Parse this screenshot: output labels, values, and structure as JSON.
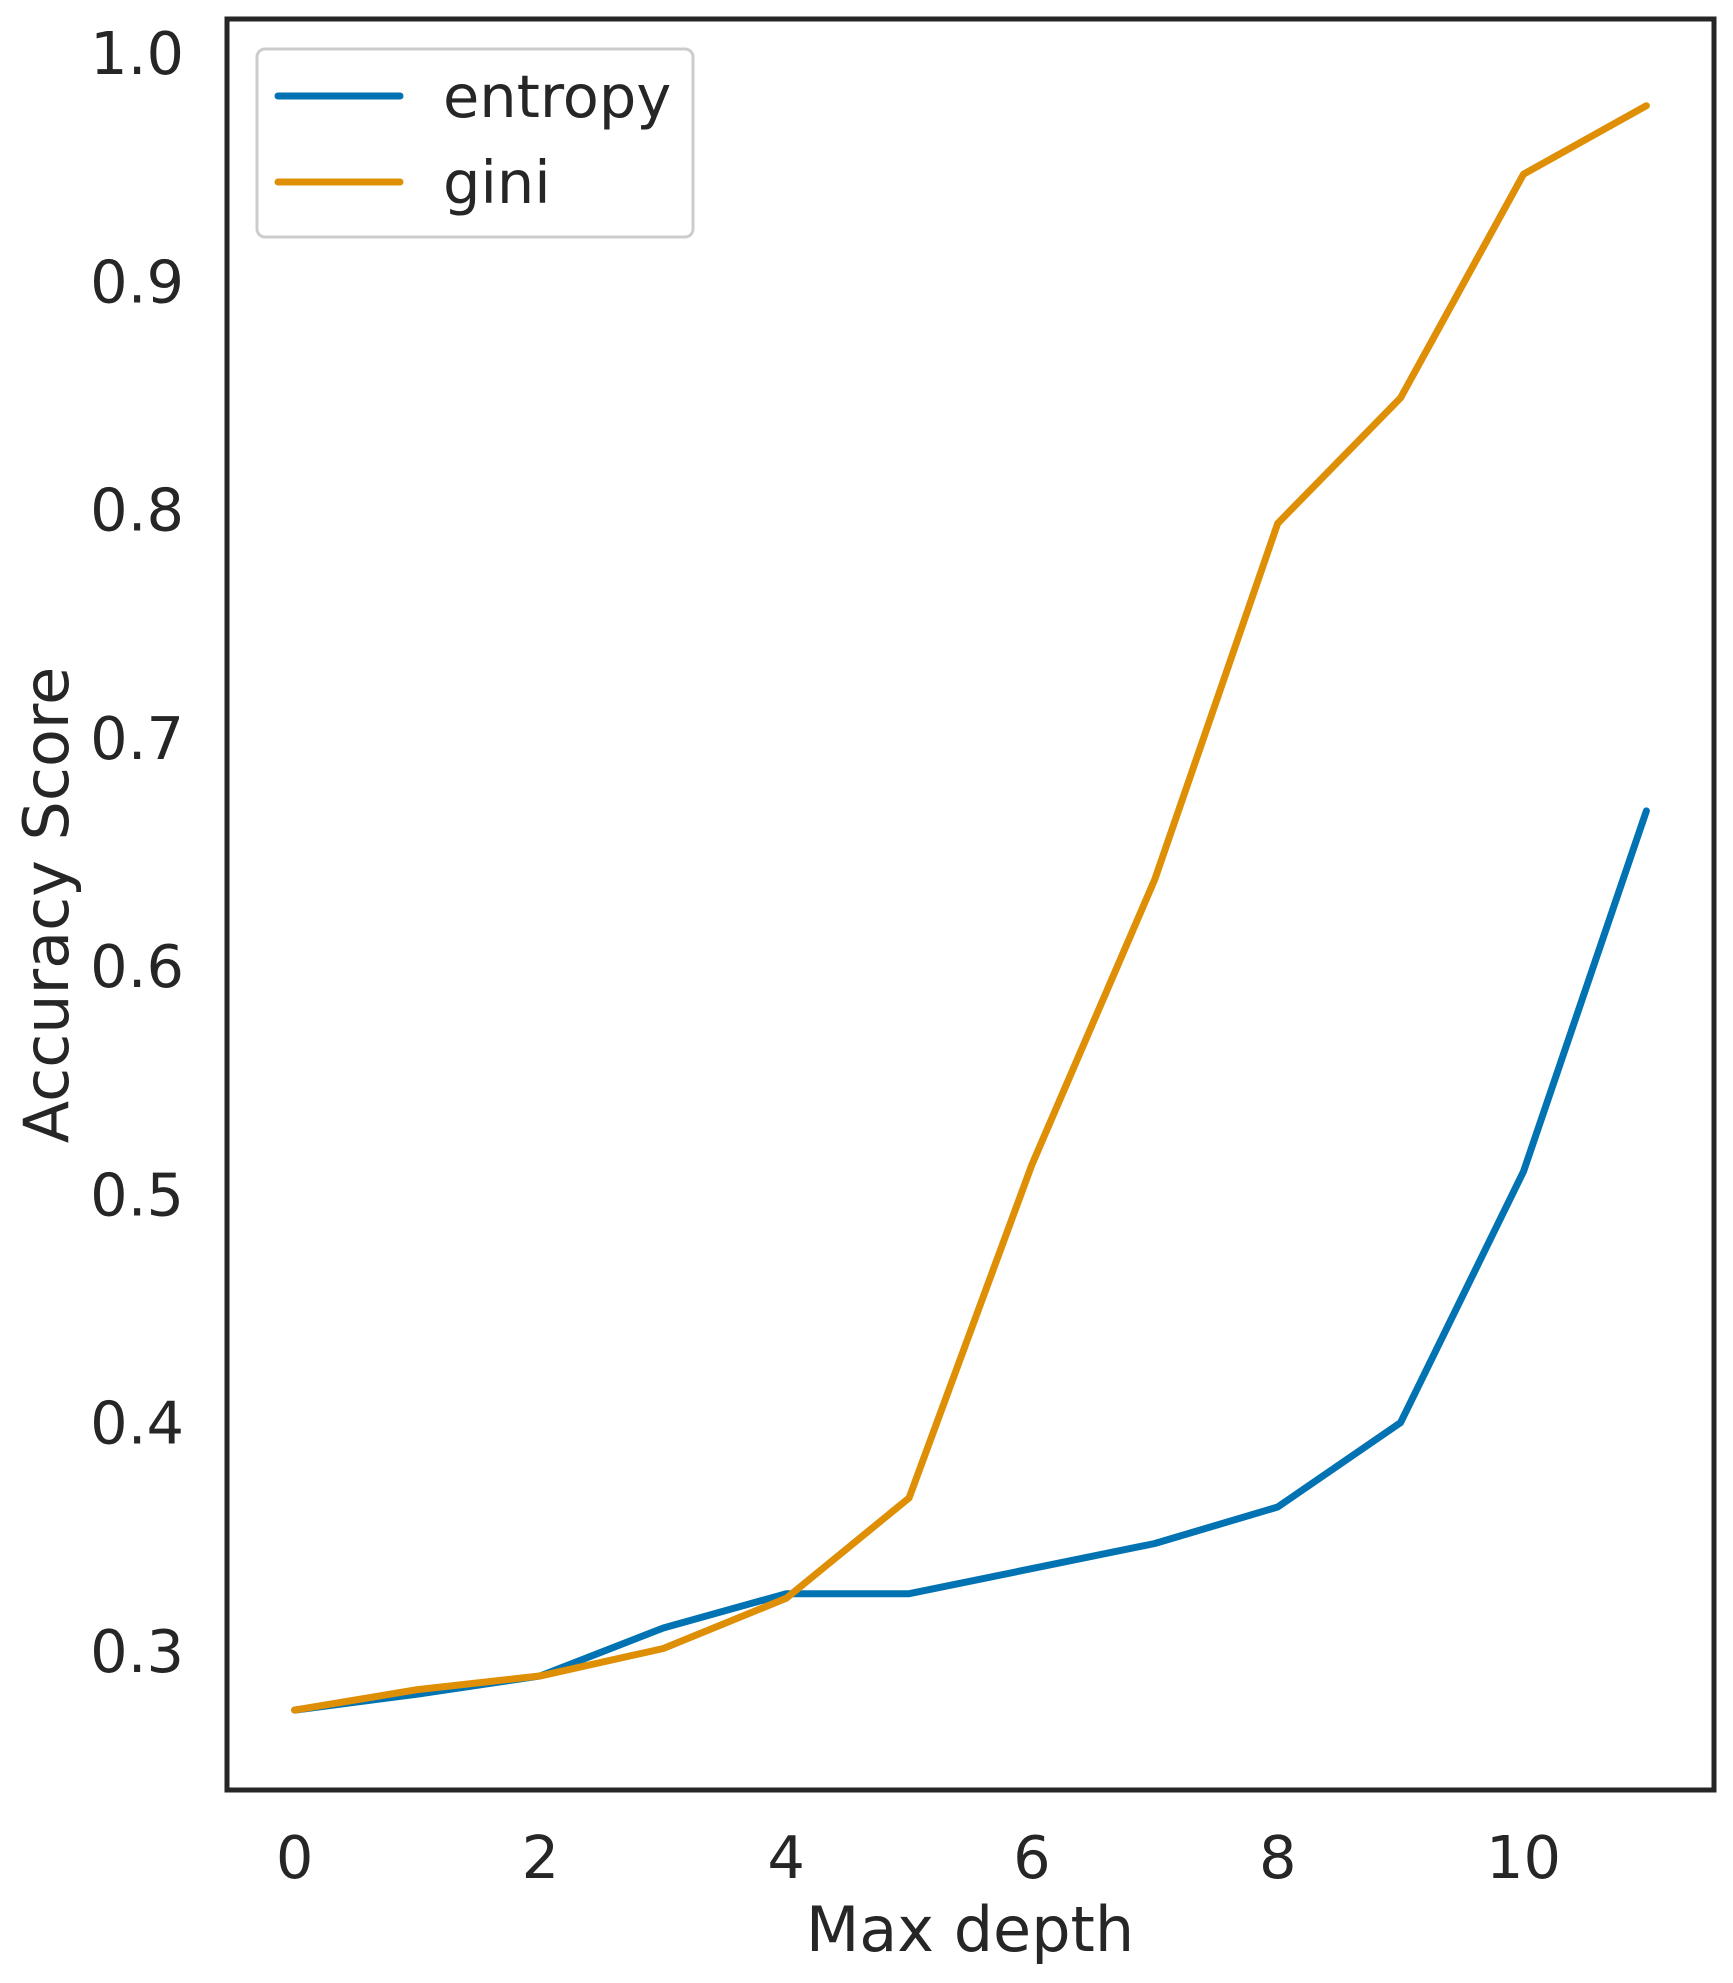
{
  "chart_data": {
    "type": "line",
    "title": "",
    "xlabel": "Max depth",
    "ylabel": "Accuracy Score",
    "xlim": [
      -0.55,
      11.55
    ],
    "ylim": [
      0.239,
      1.015
    ],
    "xticks": [
      0,
      2,
      4,
      6,
      8,
      10
    ],
    "xtick_labels": [
      "0",
      "2",
      "4",
      "6",
      "8",
      "10"
    ],
    "yticks": [
      0.3,
      0.4,
      0.5,
      0.6,
      0.7,
      0.8,
      0.9,
      1.0
    ],
    "ytick_labels": [
      "0.3",
      "0.4",
      "0.5",
      "0.6",
      "0.7",
      "0.8",
      "0.9",
      "1.0"
    ],
    "grid": false,
    "legend_position": "top-left",
    "x": [
      0,
      1,
      2,
      3,
      4,
      5,
      6,
      7,
      8,
      9,
      10,
      11
    ],
    "series": [
      {
        "name": "entropy",
        "color": "#0173b2",
        "values": [
          0.274,
          0.281,
          0.289,
          0.31,
          0.325,
          0.325,
          0.336,
          0.347,
          0.363,
          0.4,
          0.51,
          0.668
        ]
      },
      {
        "name": "gini",
        "color": "#de8f05",
        "values": [
          0.274,
          0.283,
          0.289,
          0.301,
          0.323,
          0.367,
          0.513,
          0.638,
          0.794,
          0.849,
          0.947,
          0.977
        ]
      }
    ]
  }
}
